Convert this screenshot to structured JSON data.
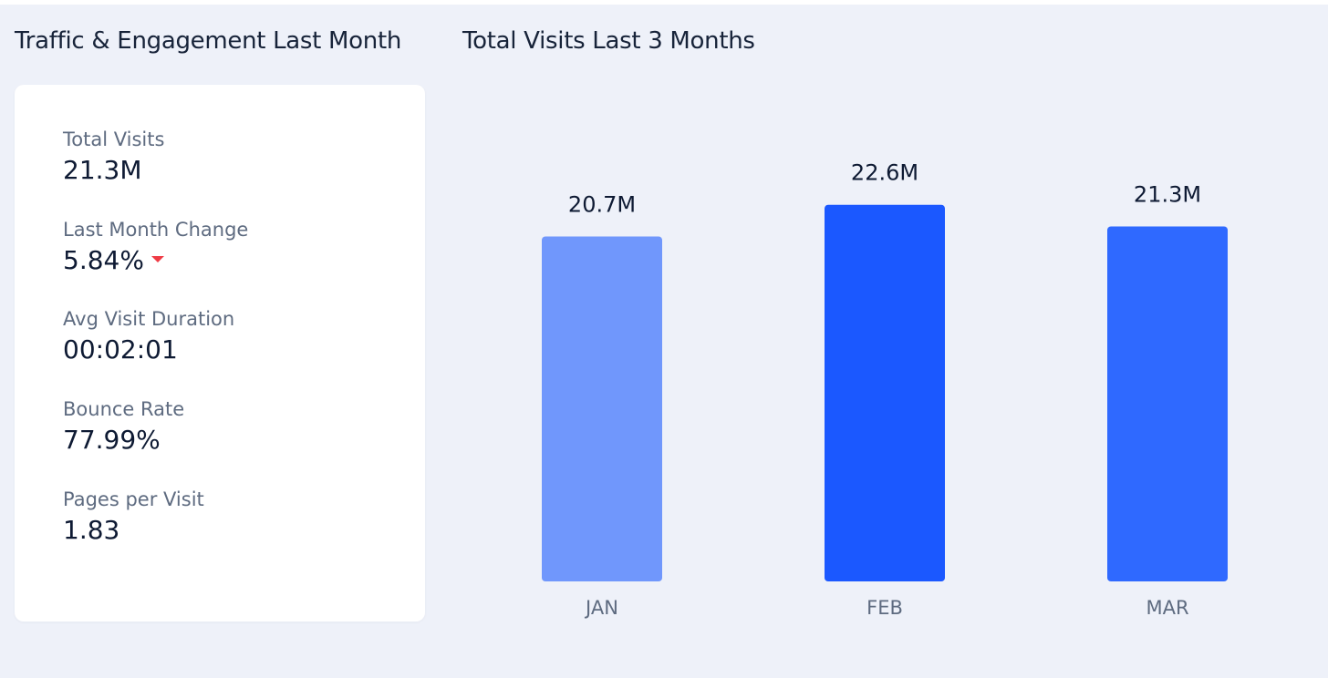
{
  "left_panel": {
    "title": "Traffic & Engagement Last Month",
    "metrics": [
      {
        "label": "Total Visits",
        "value": "21.3M"
      },
      {
        "label": "Last Month Change",
        "value": "5.84%",
        "trend": "down",
        "trend_icon": "caret-down-icon",
        "trend_color": "#ef3b45"
      },
      {
        "label": "Avg Visit Duration",
        "value": "00:02:01"
      },
      {
        "label": "Bounce Rate",
        "value": "77.99%"
      },
      {
        "label": "Pages per Visit",
        "value": "1.83"
      }
    ]
  },
  "right_panel": {
    "title": "Total Visits Last 3 Months"
  },
  "chart_data": {
    "type": "bar",
    "title": "Total Visits Last 3 Months",
    "categories": [
      "JAN",
      "FEB",
      "MAR"
    ],
    "values": [
      20.7,
      22.6,
      21.3
    ],
    "value_labels": [
      "20.7M",
      "22.6M",
      "21.3M"
    ],
    "unit": "M",
    "bar_colors": [
      "#7097fc",
      "#1b58ff",
      "#2f69ff"
    ],
    "ylim": [
      0,
      24.5
    ],
    "grid": false,
    "xlabel": "",
    "ylabel": ""
  }
}
